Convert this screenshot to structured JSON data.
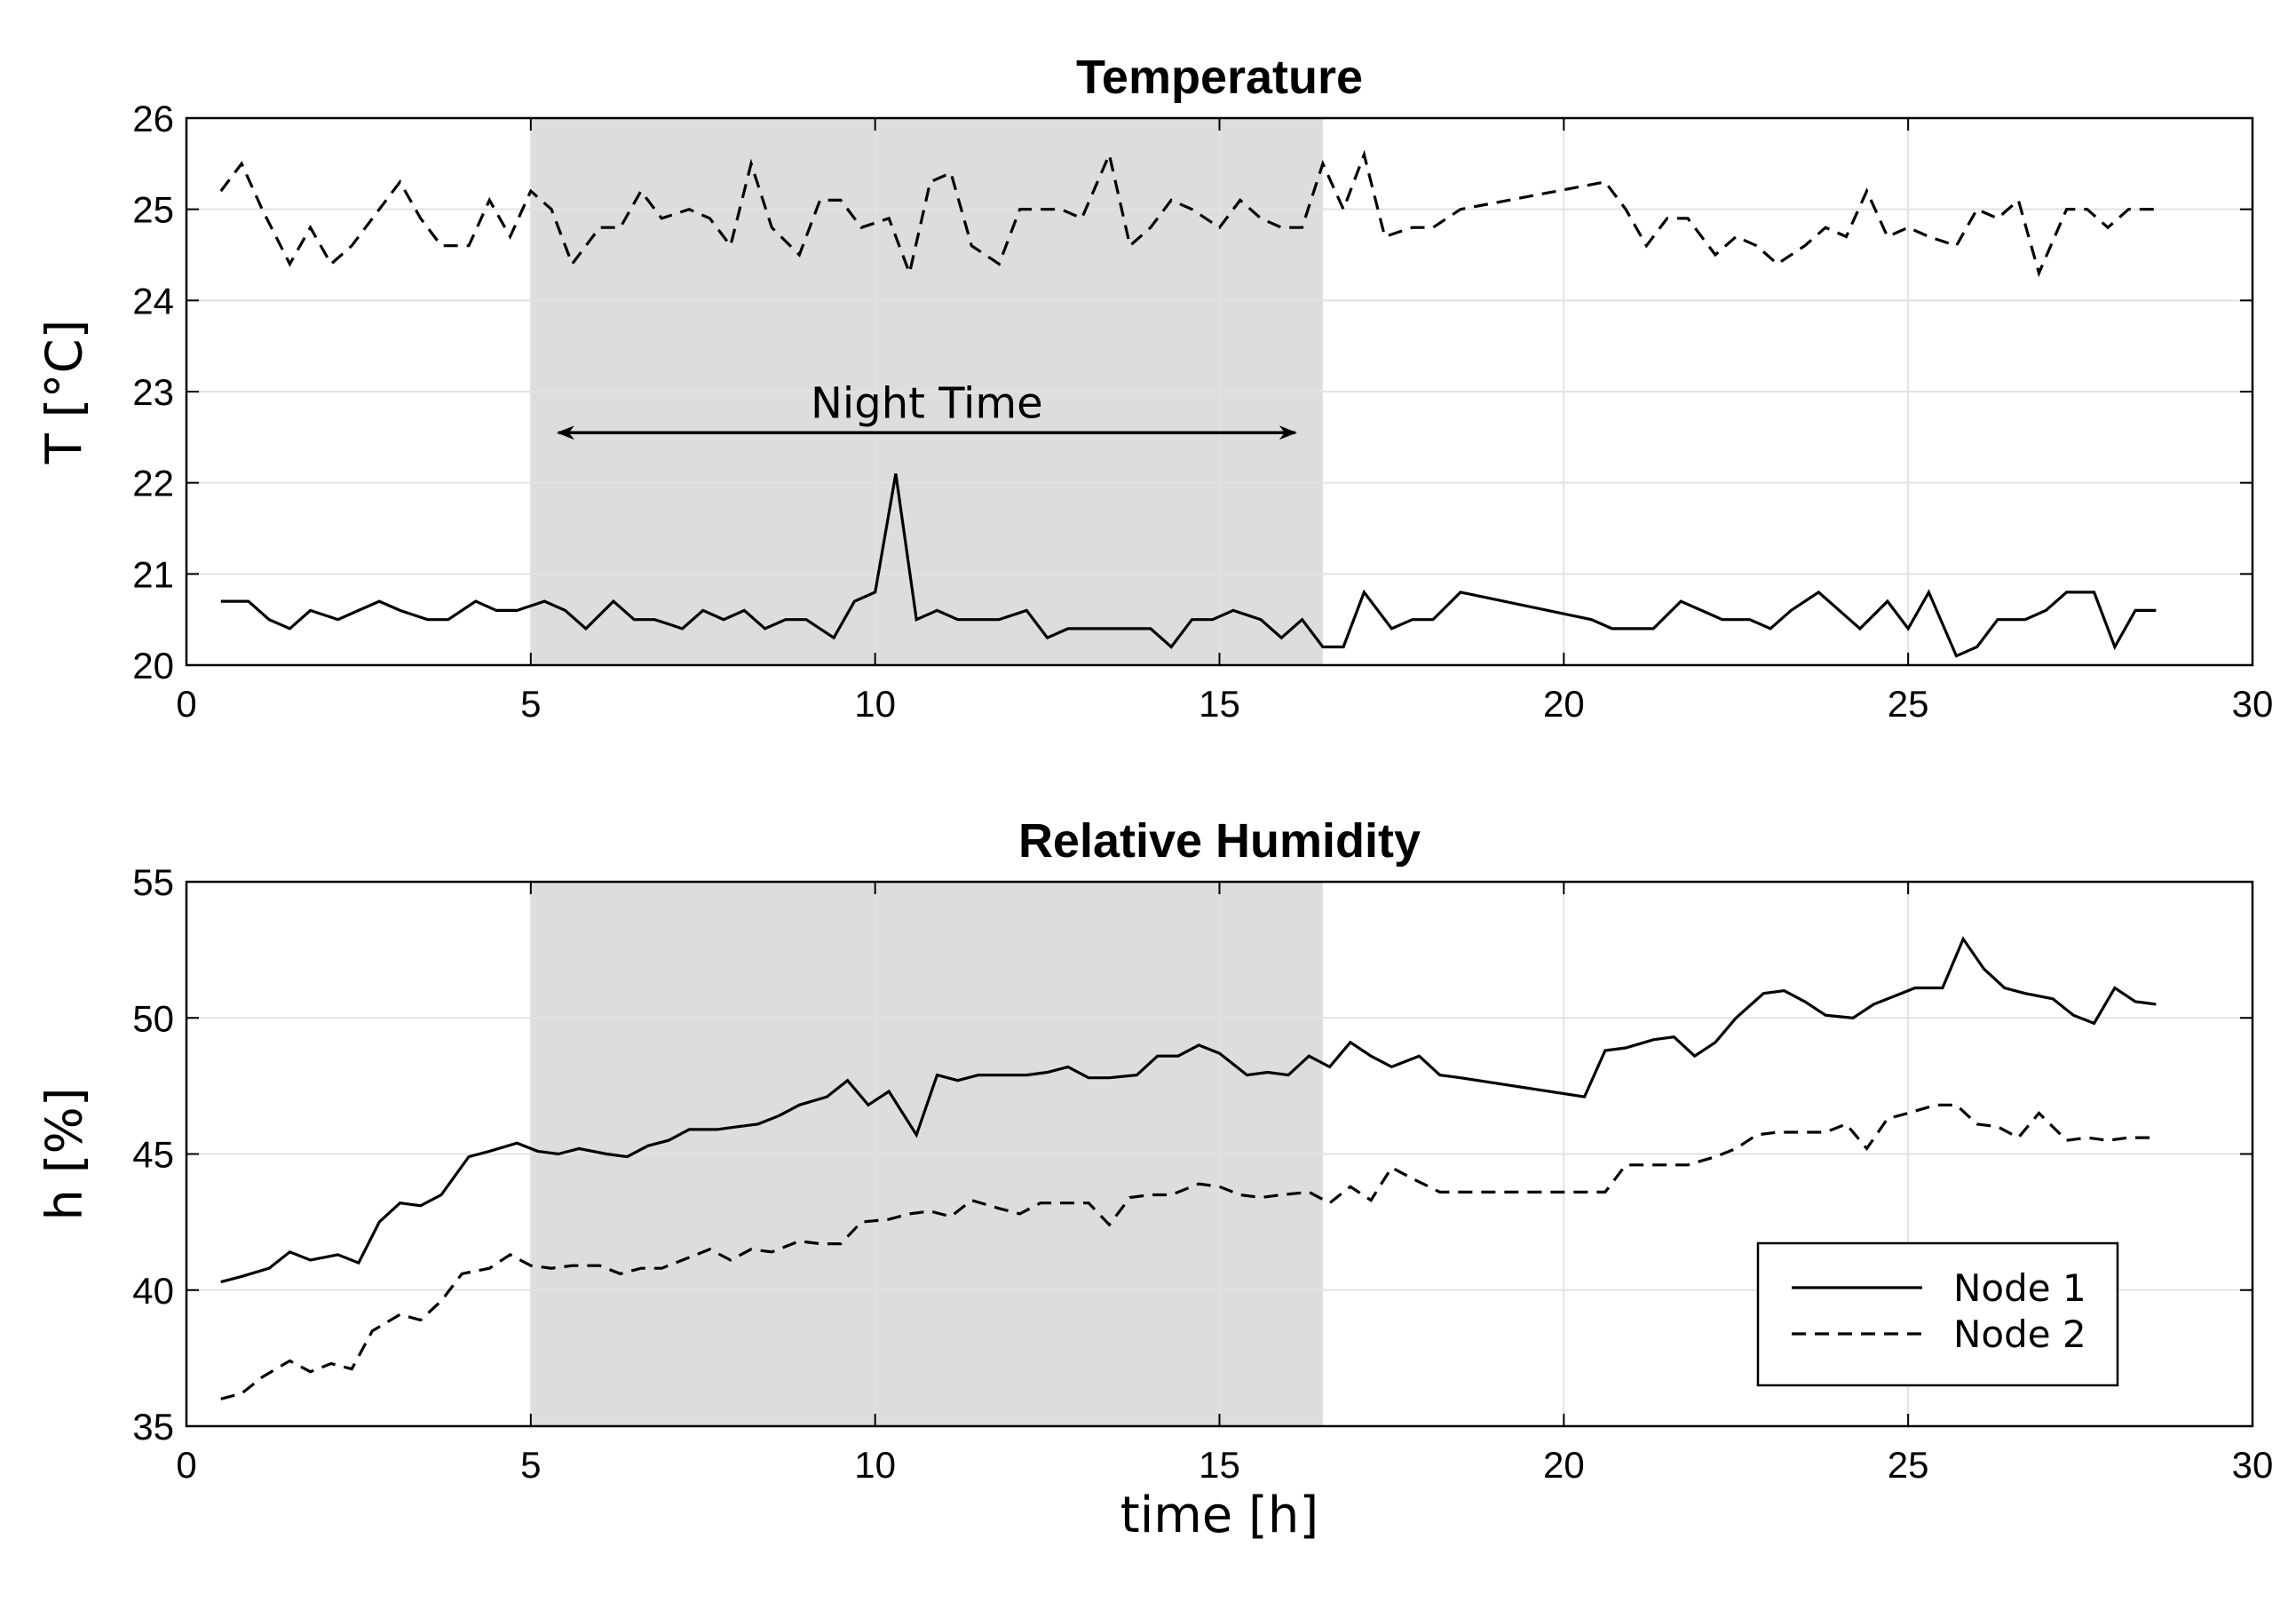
{
  "chart_data": [
    {
      "type": "line",
      "title": "Temperature",
      "xlabel": "",
      "ylabel": "T [°C]",
      "xlim": [
        0,
        30
      ],
      "ylim": [
        20,
        26
      ],
      "xticks": [
        "0",
        "5",
        "10",
        "15",
        "20",
        "25",
        "30"
      ],
      "yticks": [
        "20",
        "21",
        "22",
        "23",
        "24",
        "25",
        "26"
      ],
      "grid": true,
      "shaded_region": {
        "x": [
          5,
          16.5
        ],
        "color": "#dddddd"
      },
      "annotations": [
        {
          "text": "Night Time",
          "arrow_x": [
            5.4,
            16.1
          ],
          "arrow_y": 22.55,
          "text_x": 10.75,
          "text_y": 22.85
        }
      ],
      "series": [
        {
          "name": "Node 1",
          "style": "solid",
          "x": [
            0.5,
            0.9,
            1.2,
            1.5,
            1.8,
            2.2,
            2.5,
            2.8,
            3.1,
            3.5,
            3.8,
            4.2,
            4.5,
            4.8,
            5.2,
            5.5,
            5.8,
            6.2,
            6.5,
            6.8,
            7.2,
            7.5,
            7.8,
            8.1,
            8.4,
            8.7,
            9.0,
            9.4,
            9.7,
            10.0,
            10.3,
            10.6,
            10.9,
            11.2,
            11.5,
            11.8,
            12.2,
            12.5,
            12.8,
            13.1,
            13.4,
            13.7,
            14.0,
            14.3,
            14.6,
            14.9,
            15.2,
            15.6,
            15.9,
            16.2,
            16.5,
            16.8,
            17.1,
            17.5,
            17.8,
            18.1,
            18.5,
            20.4,
            20.7,
            21.0,
            21.3,
            21.7,
            22.0,
            22.3,
            22.7,
            23.0,
            23.3,
            23.7,
            24.0,
            24.3,
            24.7,
            25.0,
            25.3,
            25.7,
            26.0,
            26.3,
            26.7,
            27.0,
            27.3,
            27.7,
            28.0,
            28.3,
            28.6
          ],
          "y": [
            20.7,
            20.7,
            20.5,
            20.4,
            20.6,
            20.5,
            20.6,
            20.7,
            20.6,
            20.5,
            20.5,
            20.7,
            20.6,
            20.6,
            20.7,
            20.6,
            20.4,
            20.7,
            20.5,
            20.5,
            20.4,
            20.6,
            20.5,
            20.6,
            20.4,
            20.5,
            20.5,
            20.3,
            20.7,
            20.8,
            22.1,
            20.5,
            20.6,
            20.5,
            20.5,
            20.5,
            20.6,
            20.3,
            20.4,
            20.4,
            20.4,
            20.4,
            20.4,
            20.2,
            20.5,
            20.5,
            20.6,
            20.5,
            20.3,
            20.5,
            20.2,
            20.2,
            20.8,
            20.4,
            20.5,
            20.5,
            20.8,
            20.5,
            20.4,
            20.4,
            20.4,
            20.7,
            20.6,
            20.5,
            20.5,
            20.4,
            20.6,
            20.8,
            20.6,
            20.4,
            20.7,
            20.4,
            20.8,
            20.1,
            20.2,
            20.5,
            20.5,
            20.6,
            20.8,
            20.8,
            20.2,
            20.6,
            20.6
          ]
        },
        {
          "name": "Node 2",
          "style": "dashed",
          "x": [
            0.5,
            0.8,
            1.1,
            1.5,
            1.8,
            2.1,
            2.4,
            2.8,
            3.1,
            3.4,
            3.7,
            4.1,
            4.4,
            4.7,
            5.0,
            5.3,
            5.6,
            6.0,
            6.3,
            6.6,
            6.9,
            7.3,
            7.6,
            7.9,
            8.2,
            8.5,
            8.9,
            9.2,
            9.5,
            9.8,
            10.2,
            10.5,
            10.8,
            11.1,
            11.4,
            11.8,
            12.1,
            12.4,
            12.7,
            13.0,
            13.4,
            13.7,
            14.0,
            14.3,
            14.6,
            15.0,
            15.3,
            15.6,
            15.9,
            16.2,
            16.5,
            16.8,
            17.1,
            17.4,
            17.8,
            18.1,
            18.5,
            20.6,
            20.9,
            21.2,
            21.5,
            21.8,
            22.2,
            22.5,
            22.8,
            23.1,
            23.5,
            23.8,
            24.1,
            24.4,
            24.7,
            25.0,
            25.3,
            25.7,
            26.0,
            26.3,
            26.6,
            26.9,
            27.3,
            27.6,
            27.9,
            28.2,
            28.6
          ],
          "y": [
            25.2,
            25.5,
            25.0,
            24.4,
            24.8,
            24.4,
            24.6,
            25.0,
            25.3,
            24.9,
            24.6,
            24.6,
            25.1,
            24.7,
            25.2,
            25.0,
            24.4,
            24.8,
            24.8,
            25.2,
            24.9,
            25.0,
            24.9,
            24.6,
            25.5,
            24.8,
            24.5,
            25.1,
            25.1,
            24.8,
            24.9,
            24.3,
            25.3,
            25.4,
            24.6,
            24.4,
            25.0,
            25.0,
            25.0,
            24.9,
            25.6,
            24.6,
            24.8,
            25.1,
            25.0,
            24.8,
            25.1,
            24.9,
            24.8,
            24.8,
            25.5,
            25.0,
            25.6,
            24.7,
            24.8,
            24.8,
            25.0,
            25.3,
            25.0,
            24.6,
            24.9,
            24.9,
            24.5,
            24.7,
            24.6,
            24.4,
            24.6,
            24.8,
            24.7,
            25.2,
            24.7,
            24.8,
            24.7,
            24.6,
            25.0,
            24.9,
            25.1,
            24.3,
            25.0,
            25.0,
            24.8,
            25.0,
            25.0
          ]
        }
      ]
    },
    {
      "type": "line",
      "title": "Relative Humidity",
      "xlabel": "time [h]",
      "ylabel": "h [%]",
      "xlim": [
        0,
        30
      ],
      "ylim": [
        35,
        55
      ],
      "xticks": [
        "0",
        "5",
        "10",
        "15",
        "20",
        "25",
        "30"
      ],
      "yticks": [
        "35",
        "40",
        "45",
        "50",
        "55"
      ],
      "grid": true,
      "legend_position": "bottom-right",
      "shaded_region": {
        "x": [
          5,
          16.5
        ],
        "color": "#dddddd"
      },
      "series": [
        {
          "name": "Node 1",
          "style": "solid",
          "x": [
            0.5,
            0.8,
            1.2,
            1.5,
            1.8,
            2.2,
            2.5,
            2.8,
            3.1,
            3.4,
            3.7,
            4.1,
            4.4,
            4.8,
            5.1,
            5.4,
            5.7,
            6.1,
            6.4,
            6.7,
            7.0,
            7.3,
            7.7,
            8.0,
            8.3,
            8.6,
            8.9,
            9.3,
            9.6,
            9.9,
            10.2,
            10.6,
            10.9,
            11.2,
            11.5,
            11.8,
            12.2,
            12.5,
            12.8,
            13.1,
            13.4,
            13.8,
            14.1,
            14.4,
            14.7,
            15.0,
            15.4,
            15.7,
            16.0,
            16.3,
            16.6,
            16.9,
            17.2,
            17.5,
            17.9,
            18.2,
            18.5,
            20.3,
            20.6,
            20.9,
            21.3,
            21.6,
            21.9,
            22.2,
            22.5,
            22.9,
            23.2,
            23.5,
            23.8,
            24.2,
            24.5,
            24.8,
            25.1,
            25.5,
            25.8,
            26.1,
            26.4,
            26.7,
            27.1,
            27.4,
            27.7,
            28.0,
            28.3,
            28.6
          ],
          "y": [
            40.3,
            40.5,
            40.8,
            41.4,
            41.1,
            41.3,
            41.0,
            42.5,
            43.2,
            43.1,
            43.5,
            44.9,
            45.1,
            45.4,
            45.1,
            45.0,
            45.2,
            45.0,
            44.9,
            45.3,
            45.5,
            45.9,
            45.9,
            46.0,
            46.1,
            46.4,
            46.8,
            47.1,
            47.7,
            46.8,
            47.3,
            45.7,
            47.9,
            47.7,
            47.9,
            47.9,
            47.9,
            48.0,
            48.2,
            47.8,
            47.8,
            47.9,
            48.6,
            48.6,
            49.0,
            48.7,
            47.9,
            48.0,
            47.9,
            48.6,
            48.2,
            49.1,
            48.6,
            48.2,
            48.6,
            47.9,
            47.8,
            47.1,
            48.8,
            48.9,
            49.2,
            49.3,
            48.6,
            49.1,
            50.0,
            50.9,
            51.0,
            50.6,
            50.1,
            50.0,
            50.5,
            50.8,
            51.1,
            51.1,
            52.9,
            51.8,
            51.1,
            50.9,
            50.7,
            50.1,
            49.8,
            51.1,
            50.6,
            50.5
          ]
        },
        {
          "name": "Node 2",
          "style": "dashed",
          "x": [
            0.5,
            0.8,
            1.1,
            1.5,
            1.8,
            2.1,
            2.4,
            2.7,
            3.1,
            3.4,
            3.7,
            4.0,
            4.4,
            4.7,
            5.0,
            5.3,
            5.6,
            6.0,
            6.3,
            6.6,
            6.9,
            7.3,
            7.6,
            7.9,
            8.2,
            8.5,
            8.9,
            9.2,
            9.5,
            9.8,
            10.2,
            10.5,
            10.8,
            11.1,
            11.4,
            11.8,
            12.1,
            12.4,
            12.7,
            13.1,
            13.4,
            13.7,
            14.0,
            14.3,
            14.7,
            15.0,
            15.3,
            15.6,
            15.9,
            16.3,
            16.6,
            16.9,
            17.2,
            17.5,
            17.8,
            18.2,
            18.5,
            20.6,
            20.9,
            21.2,
            21.5,
            21.8,
            22.2,
            22.5,
            22.8,
            23.1,
            23.5,
            23.8,
            24.1,
            24.4,
            24.7,
            25.0,
            25.4,
            25.7,
            26.0,
            26.3,
            26.6,
            26.9,
            27.3,
            27.6,
            27.9,
            28.2,
            28.6
          ],
          "y": [
            36.0,
            36.2,
            36.8,
            37.4,
            37.0,
            37.3,
            37.1,
            38.5,
            39.1,
            38.9,
            39.6,
            40.6,
            40.8,
            41.3,
            40.9,
            40.8,
            40.9,
            40.9,
            40.6,
            40.8,
            40.8,
            41.2,
            41.5,
            41.1,
            41.5,
            41.4,
            41.8,
            41.7,
            41.7,
            42.5,
            42.6,
            42.8,
            42.9,
            42.7,
            43.3,
            43.0,
            42.8,
            43.2,
            43.2,
            43.2,
            42.4,
            43.4,
            43.5,
            43.5,
            43.9,
            43.8,
            43.5,
            43.4,
            43.5,
            43.6,
            43.2,
            43.8,
            43.3,
            44.5,
            44.1,
            43.6,
            43.6,
            43.6,
            44.6,
            44.6,
            44.6,
            44.6,
            44.9,
            45.2,
            45.7,
            45.8,
            45.8,
            45.8,
            46.1,
            45.2,
            46.3,
            46.5,
            46.8,
            46.8,
            46.1,
            46.0,
            45.6,
            46.5,
            45.5,
            45.6,
            45.5,
            45.6,
            45.6
          ]
        }
      ]
    }
  ]
}
